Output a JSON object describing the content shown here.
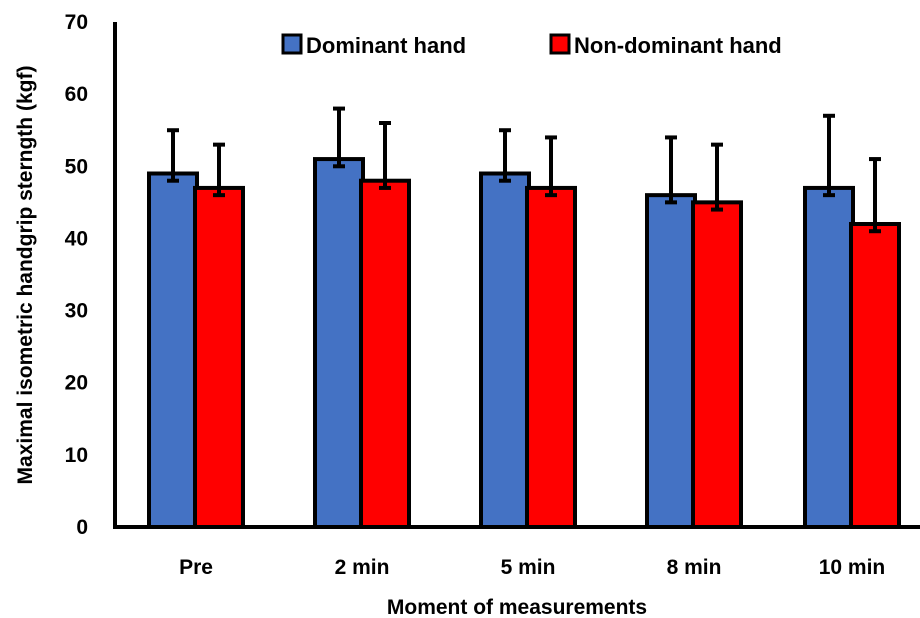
{
  "chart_data": {
    "type": "bar",
    "categories": [
      "Pre",
      "2 min",
      "5 min",
      "8 min",
      "10 min"
    ],
    "series": [
      {
        "name": "Dominant hand",
        "color": "#4472C4",
        "values": [
          49,
          51,
          49,
          46,
          47
        ],
        "error_upper": [
          55,
          58,
          55,
          54,
          57
        ],
        "error_lower": [
          48,
          50,
          48,
          45,
          46
        ]
      },
      {
        "name": "Non-dominant hand",
        "color": "#FF0000",
        "values": [
          47,
          48,
          47,
          45,
          42
        ],
        "error_upper": [
          53,
          56,
          54,
          53,
          51
        ],
        "error_lower": [
          46,
          47,
          46,
          44,
          41
        ]
      }
    ],
    "xlabel": "Moment of measurements",
    "ylabel": "Maximal isometric handgrip sterngth (kgf)",
    "ylim": [
      0,
      70
    ],
    "yticks": [
      0,
      10,
      20,
      30,
      40,
      50,
      60,
      70
    ],
    "grid": false,
    "legend": "top-center"
  }
}
